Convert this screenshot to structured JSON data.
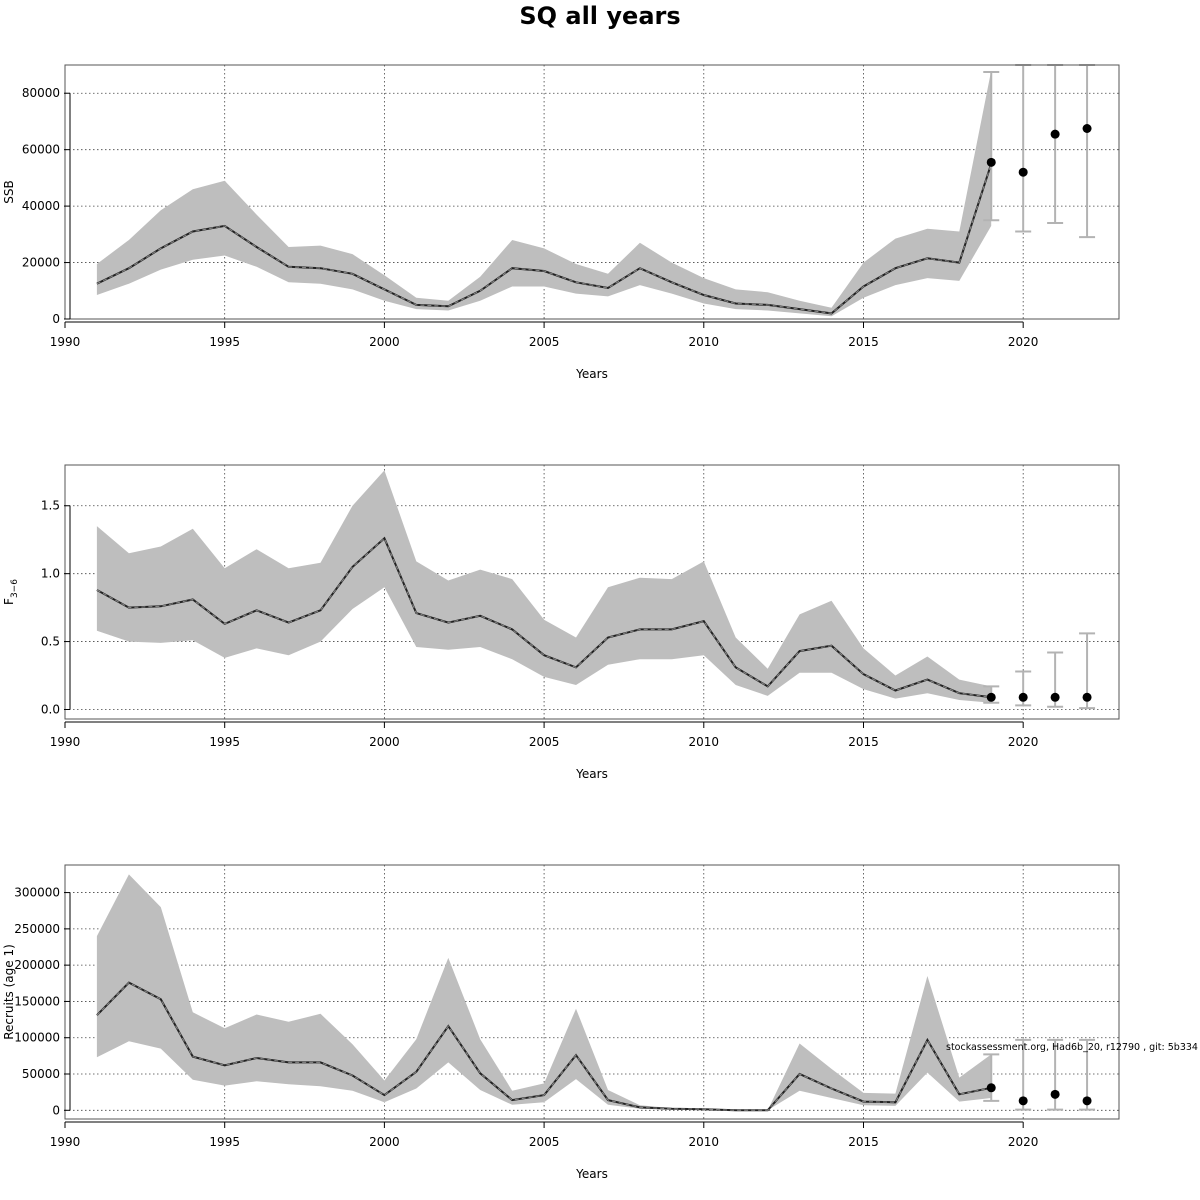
{
  "title": "SQ all years",
  "annotation": "stockassessment.org, Had6b_20, r12790 , git: 5b334",
  "colors": {
    "band": "#bebebe",
    "line": "#222222",
    "errorbar": "#b3b3b3",
    "point": "#000000",
    "grid": "#444444"
  },
  "chart_data": [
    {
      "type": "line",
      "ylabel": "SSB",
      "xlabel": "Years",
      "xlim": [
        1990,
        2023
      ],
      "ylim": [
        0,
        90000
      ],
      "xticks": [
        1990,
        1995,
        2000,
        2005,
        2010,
        2015,
        2020
      ],
      "yticks": [
        0,
        20000,
        40000,
        60000,
        80000
      ],
      "ytick_labels": [
        "0",
        "20000",
        "40000",
        "60000",
        "80000"
      ],
      "grid": true,
      "x": [
        1991,
        1992,
        1993,
        1994,
        1995,
        1996,
        1997,
        1998,
        1999,
        2000,
        2001,
        2002,
        2003,
        2004,
        2005,
        2006,
        2007,
        2008,
        2009,
        2010,
        2011,
        2012,
        2013,
        2014,
        2015,
        2016,
        2017,
        2018,
        2019
      ],
      "estimate": [
        12500,
        18000,
        25000,
        31000,
        33000,
        25500,
        18500,
        18000,
        16000,
        10500,
        5000,
        4500,
        10000,
        18000,
        17000,
        13000,
        11000,
        18000,
        13000,
        8500,
        5500,
        5000,
        3500,
        2000,
        11500,
        18000,
        21500,
        20000,
        55000
      ],
      "lower": [
        8500,
        12500,
        17500,
        21000,
        22500,
        18500,
        13000,
        12500,
        10500,
        6500,
        3500,
        3000,
        6500,
        11500,
        11500,
        9000,
        8000,
        12000,
        9000,
        5500,
        3500,
        3000,
        2000,
        1000,
        7500,
        12000,
        14500,
        13500,
        33000
      ],
      "upper": [
        19500,
        28000,
        38500,
        46000,
        49000,
        37000,
        25500,
        26000,
        23000,
        15500,
        7500,
        6500,
        15000,
        28000,
        25000,
        19500,
        16000,
        27000,
        20000,
        14500,
        10500,
        9500,
        6500,
        4000,
        20000,
        28500,
        32000,
        31000,
        88000
      ],
      "forecast": {
        "x": [
          2019,
          2020,
          2021,
          2022
        ],
        "median": [
          55500,
          52000,
          65500,
          67500
        ],
        "lower": [
          35000,
          31000,
          34000,
          29000
        ],
        "upper": [
          87500,
          93000,
          93000,
          93000
        ]
      }
    },
    {
      "type": "line",
      "ylabel": "F",
      "ylabel_sub": "3−6",
      "xlabel": "Years",
      "xlim": [
        1990,
        2023
      ],
      "ylim": [
        -0.07,
        1.8
      ],
      "xticks": [
        1990,
        1995,
        2000,
        2005,
        2010,
        2015,
        2020
      ],
      "yticks": [
        0.0,
        0.5,
        1.0,
        1.5
      ],
      "ytick_labels": [
        "0.0",
        "0.5",
        "1.0",
        "1.5"
      ],
      "grid": true,
      "x": [
        1991,
        1992,
        1993,
        1994,
        1995,
        1996,
        1997,
        1998,
        1999,
        2000,
        2001,
        2002,
        2003,
        2004,
        2005,
        2006,
        2007,
        2008,
        2009,
        2010,
        2011,
        2012,
        2013,
        2014,
        2015,
        2016,
        2017,
        2018,
        2019
      ],
      "estimate": [
        0.88,
        0.75,
        0.76,
        0.81,
        0.63,
        0.73,
        0.64,
        0.73,
        1.05,
        1.26,
        0.71,
        0.64,
        0.69,
        0.59,
        0.4,
        0.31,
        0.53,
        0.59,
        0.59,
        0.65,
        0.31,
        0.17,
        0.43,
        0.47,
        0.26,
        0.14,
        0.22,
        0.12,
        0.09
      ],
      "lower": [
        0.58,
        0.5,
        0.49,
        0.51,
        0.38,
        0.45,
        0.4,
        0.5,
        0.74,
        0.9,
        0.46,
        0.44,
        0.46,
        0.37,
        0.24,
        0.18,
        0.33,
        0.37,
        0.37,
        0.4,
        0.18,
        0.1,
        0.27,
        0.27,
        0.15,
        0.08,
        0.12,
        0.07,
        0.05
      ],
      "upper": [
        1.35,
        1.15,
        1.2,
        1.33,
        1.04,
        1.18,
        1.04,
        1.08,
        1.5,
        1.76,
        1.09,
        0.95,
        1.03,
        0.96,
        0.66,
        0.53,
        0.9,
        0.97,
        0.96,
        1.09,
        0.53,
        0.3,
        0.7,
        0.8,
        0.45,
        0.25,
        0.39,
        0.22,
        0.17
      ],
      "forecast": {
        "x": [
          2019,
          2020,
          2021,
          2022
        ],
        "median": [
          0.09,
          0.09,
          0.09,
          0.09
        ],
        "lower": [
          0.05,
          0.03,
          0.02,
          0.01
        ],
        "upper": [
          0.17,
          0.28,
          0.42,
          0.56
        ]
      }
    },
    {
      "type": "line",
      "ylabel": "Recruits (age 1)",
      "xlabel": "Years",
      "xlim": [
        1990,
        2023
      ],
      "ylim": [
        -12000,
        338000
      ],
      "xticks": [
        1990,
        1995,
        2000,
        2005,
        2010,
        2015,
        2020
      ],
      "yticks": [
        0,
        50000,
        100000,
        150000,
        200000,
        250000,
        300000
      ],
      "ytick_labels": [
        "0",
        "50000",
        "100000",
        "150000",
        "200000",
        "250000",
        "300000"
      ],
      "grid": true,
      "x": [
        1991,
        1992,
        1993,
        1994,
        1995,
        1996,
        1997,
        1998,
        1999,
        2000,
        2001,
        2002,
        2003,
        2004,
        2005,
        2006,
        2007,
        2008,
        2009,
        2010,
        2011,
        2012,
        2013,
        2014,
        2015,
        2016,
        2017,
        2018,
        2019
      ],
      "estimate": [
        131000,
        176000,
        153000,
        74000,
        62000,
        72000,
        66000,
        66000,
        48000,
        21000,
        53000,
        116000,
        51000,
        14000,
        21000,
        76000,
        14000,
        4000,
        2000,
        1500,
        0,
        0,
        50000,
        30000,
        12000,
        11000,
        97000,
        22000,
        31000
      ],
      "lower": [
        73000,
        95000,
        85000,
        42000,
        34000,
        40000,
        36000,
        33000,
        27000,
        11000,
        30000,
        66000,
        28000,
        7500,
        11000,
        43000,
        7500,
        2000,
        1000,
        700,
        0,
        0,
        27000,
        17000,
        7000,
        6000,
        52000,
        12000,
        17000
      ],
      "upper": [
        240000,
        325000,
        280000,
        135000,
        113000,
        132000,
        122000,
        133000,
        91000,
        41000,
        98000,
        210000,
        98000,
        27000,
        37000,
        140000,
        28000,
        7000,
        3000,
        2000,
        0,
        0,
        92000,
        57000,
        24000,
        23000,
        185000,
        45000,
        77000
      ],
      "forecast": {
        "x": [
          2019,
          2020,
          2021,
          2022
        ],
        "median": [
          31000,
          13000,
          22000,
          13000
        ],
        "lower": [
          13000,
          1000,
          1000,
          1000
        ],
        "upper": [
          77000,
          97000,
          97000,
          97000
        ]
      }
    }
  ]
}
